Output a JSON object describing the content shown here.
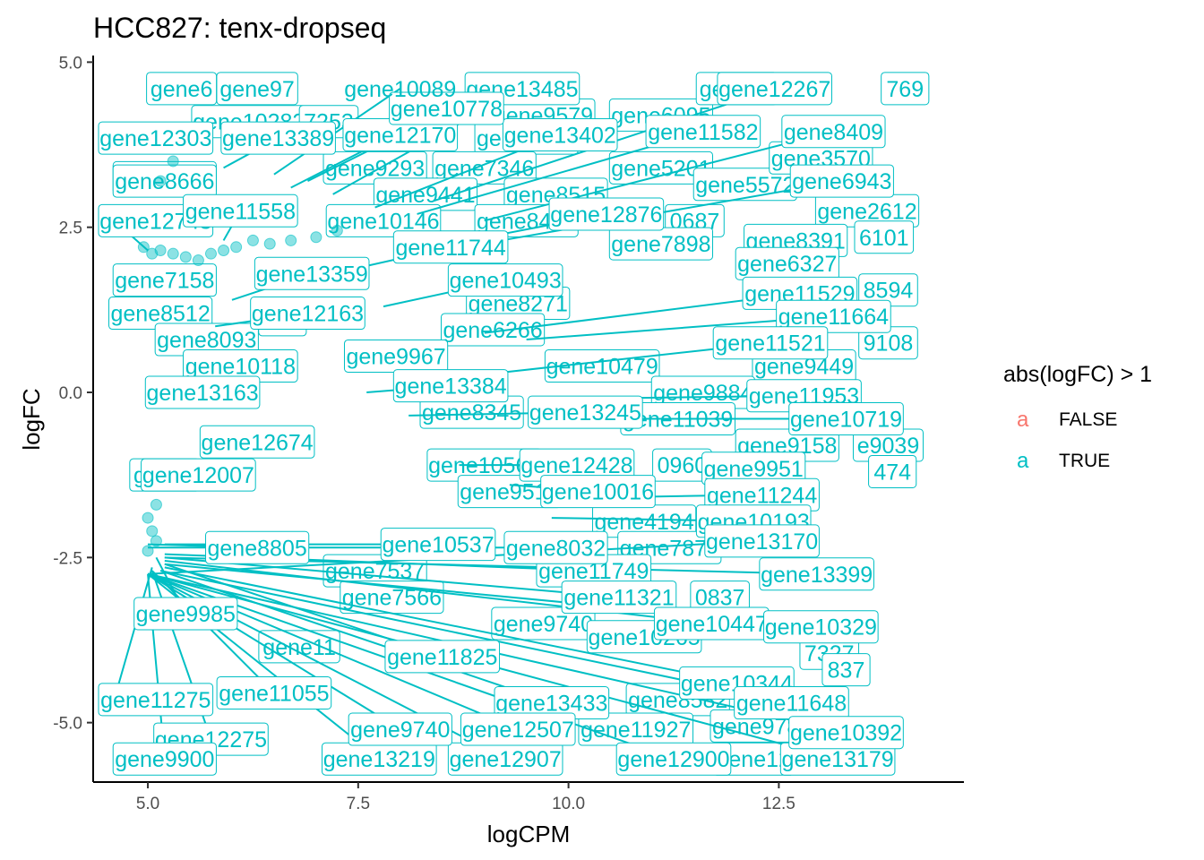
{
  "chart_data": {
    "type": "scatter",
    "title": "HCC827: tenx-dropseq",
    "xlabel": "logCPM",
    "ylabel": "logFC",
    "xlim": [
      4.35,
      14.7
    ],
    "ylim": [
      -5.9,
      5.1
    ],
    "x_ticks": [
      5.0,
      7.5,
      10.0,
      12.5
    ],
    "x_tick_labels": [
      "5.0",
      "7.5",
      "10.0",
      "12.5"
    ],
    "y_ticks": [
      5.0,
      2.5,
      0.0,
      -2.5,
      -5.0
    ],
    "y_tick_labels": [
      "5.0",
      "2.5",
      "0.0",
      "-2.5",
      "-5.0"
    ],
    "grid": false,
    "legend": {
      "title": "abs(logFC) > 1",
      "position": "right",
      "key_glyph": "a",
      "entries": [
        {
          "label": "FALSE",
          "color": "#f8766d"
        },
        {
          "label": "TRUE",
          "color": "#00bfc4"
        }
      ]
    },
    "colors": {
      "TRUE": "#00bfc4",
      "FALSE": "#f8766d"
    },
    "points": [
      {
        "x": 4.95,
        "y": 2.2
      },
      {
        "x": 5.05,
        "y": 2.1
      },
      {
        "x": 5.15,
        "y": 2.15
      },
      {
        "x": 5.3,
        "y": 2.1
      },
      {
        "x": 5.45,
        "y": 2.05
      },
      {
        "x": 5.6,
        "y": 2.0
      },
      {
        "x": 5.75,
        "y": 2.1
      },
      {
        "x": 5.9,
        "y": 2.15
      },
      {
        "x": 6.05,
        "y": 2.2
      },
      {
        "x": 6.25,
        "y": 2.3
      },
      {
        "x": 6.45,
        "y": 2.25
      },
      {
        "x": 6.7,
        "y": 2.3
      },
      {
        "x": 7.0,
        "y": 2.35
      },
      {
        "x": 7.25,
        "y": 2.45
      },
      {
        "x": 5.2,
        "y": 3.7
      },
      {
        "x": 5.3,
        "y": 3.5
      },
      {
        "x": 5.15,
        "y": 3.2
      },
      {
        "x": 5.1,
        "y": -1.7
      },
      {
        "x": 5.0,
        "y": -1.9
      },
      {
        "x": 5.05,
        "y": -2.1
      },
      {
        "x": 5.1,
        "y": -2.25
      },
      {
        "x": 5.0,
        "y": -2.4
      }
    ],
    "labels": [
      {
        "gene": "gene12303",
        "x": 5.15,
        "y": 3.9,
        "lx": 4.65,
        "ly": 3.85,
        "box": true
      },
      {
        "gene": "gene13389",
        "x": 5.9,
        "y": 3.4,
        "lx": 6.55,
        "ly": 3.85,
        "box": true
      },
      {
        "gene": "gene12170",
        "x": 6.9,
        "y": 3.2,
        "lx": 8.0,
        "ly": 3.9,
        "box": true
      },
      {
        "gene": "gene13402",
        "x": 7.7,
        "y": 2.8,
        "lx": 9.9,
        "ly": 3.9,
        "box": true
      },
      {
        "gene": "gene11582",
        "x": 8.2,
        "y": 2.7,
        "lx": 11.6,
        "ly": 3.95,
        "box": true
      },
      {
        "gene": "gene8409",
        "x": 9.0,
        "y": 2.6,
        "lx": 13.15,
        "ly": 3.95,
        "box": true
      },
      {
        "gene": "gene12267",
        "x": 8.4,
        "y": 2.9,
        "lx": 12.45,
        "ly": 4.6,
        "box": true
      },
      {
        "gene": "gene13485",
        "x": 7.2,
        "y": 3.0,
        "lx": 9.45,
        "ly": 4.6,
        "box": true
      },
      {
        "gene": "gene10778",
        "x": 6.7,
        "y": 3.1,
        "lx": 8.55,
        "ly": 4.3,
        "box": true
      },
      {
        "gene": "gene10089",
        "x": 6.5,
        "y": 3.3,
        "lx": 8.0,
        "ly": 4.6,
        "box": false
      },
      {
        "gene": "gene6943",
        "x": 9.2,
        "y": 2.3,
        "lx": 13.25,
        "ly": 3.2,
        "box": true
      },
      {
        "gene": "gene12743",
        "x": 5.0,
        "y": 2.15,
        "lx": 4.6,
        "ly": 2.6,
        "box": true
      },
      {
        "gene": "gene11558",
        "x": 5.9,
        "y": 2.3,
        "lx": 6.1,
        "ly": 2.75,
        "box": true
      },
      {
        "gene": "gene12876",
        "x": 8.0,
        "y": 2.1,
        "lx": 10.45,
        "ly": 2.7,
        "box": true
      },
      {
        "gene": "gene11744",
        "x": 7.2,
        "y": 1.8,
        "lx": 8.6,
        "ly": 2.2,
        "box": true
      },
      {
        "gene": "gene13359",
        "x": 6.0,
        "y": 1.4,
        "lx": 6.95,
        "ly": 1.8,
        "box": true
      },
      {
        "gene": "gene10493",
        "x": 7.8,
        "y": 1.3,
        "lx": 9.25,
        "ly": 1.7,
        "box": true
      },
      {
        "gene": "gene12163",
        "x": 5.8,
        "y": 1.0,
        "lx": 6.9,
        "ly": 1.2,
        "box": true
      },
      {
        "gene": "gene11529",
        "x": 9.0,
        "y": 0.9,
        "lx": 12.75,
        "ly": 1.5,
        "box": true
      },
      {
        "gene": "gene11664",
        "x": 9.5,
        "y": 0.8,
        "lx": 13.15,
        "ly": 1.15,
        "box": true
      },
      {
        "gene": "gene11521",
        "x": 9.2,
        "y": 0.3,
        "lx": 12.4,
        "ly": 0.75,
        "box": true
      },
      {
        "gene": "gene9967",
        "x": 7.4,
        "y": 0.6,
        "lx": 7.95,
        "ly": 0.55,
        "box": true
      },
      {
        "gene": "gene13384",
        "x": 7.6,
        "y": 0.0,
        "lx": 8.6,
        "ly": 0.1,
        "box": true
      },
      {
        "gene": "gene13163",
        "x": 5.4,
        "y": -0.2,
        "lx": 5.65,
        "ly": 0.0,
        "box": true
      },
      {
        "gene": "gene11953",
        "x": 9.8,
        "y": -0.1,
        "lx": 12.8,
        "ly": -0.05,
        "box": true
      },
      {
        "gene": "gene13245",
        "x": 8.1,
        "y": -0.35,
        "lx": 10.2,
        "ly": -0.3,
        "box": true
      },
      {
        "gene": "gene10719",
        "x": 10.5,
        "y": -0.4,
        "lx": 13.3,
        "ly": -0.4,
        "box": true
      },
      {
        "gene": "gene12674",
        "x": 5.8,
        "y": -0.8,
        "lx": 6.3,
        "ly": -0.75,
        "box": true
      },
      {
        "gene": "gene12007",
        "x": 5.3,
        "y": -1.1,
        "lx": 5.6,
        "ly": -1.25,
        "box": true
      },
      {
        "gene": "gene12428",
        "x": 8.7,
        "y": -1.1,
        "lx": 10.1,
        "ly": -1.1,
        "box": true
      },
      {
        "gene": "gene10016",
        "x": 9.3,
        "y": -1.4,
        "lx": 10.35,
        "ly": -1.5,
        "box": true
      },
      {
        "gene": "gene11244",
        "x": 10.0,
        "y": -1.6,
        "lx": 12.3,
        "ly": -1.55,
        "box": true
      },
      {
        "gene": "gene10193",
        "x": 9.8,
        "y": -1.9,
        "lx": 12.2,
        "ly": -1.95,
        "box": true
      },
      {
        "gene": "gene10537",
        "x": 5.2,
        "y": -2.3,
        "lx": 8.45,
        "ly": -2.3,
        "box": true
      },
      {
        "gene": "gene11749",
        "x": 5.2,
        "y": -2.45,
        "lx": 10.3,
        "ly": -2.7,
        "box": true
      },
      {
        "gene": "gene11321",
        "x": 5.2,
        "y": -2.5,
        "lx": 10.6,
        "ly": -3.1,
        "box": true
      },
      {
        "gene": "gene13399",
        "x": 5.2,
        "y": -2.5,
        "lx": 12.95,
        "ly": -2.75,
        "box": true
      },
      {
        "gene": "gene10447",
        "x": 5.2,
        "y": -2.55,
        "lx": 11.7,
        "ly": -3.5,
        "box": true
      },
      {
        "gene": "gene10329",
        "x": 5.2,
        "y": -2.6,
        "lx": 13.0,
        "ly": -3.55,
        "box": true
      },
      {
        "gene": "gene9985",
        "x": 5.1,
        "y": -2.5,
        "lx": 5.45,
        "ly": -3.35,
        "box": true
      },
      {
        "gene": "gene11825",
        "x": 5.2,
        "y": -2.6,
        "lx": 8.5,
        "ly": -4.0,
        "box": true
      },
      {
        "gene": "gene10344",
        "x": 5.2,
        "y": -2.65,
        "lx": 12.0,
        "ly": -4.4,
        "box": true
      },
      {
        "gene": "gene13433",
        "x": 5.15,
        "y": -2.7,
        "lx": 9.8,
        "ly": -4.7,
        "box": true
      },
      {
        "gene": "gene11648",
        "x": 5.15,
        "y": -2.7,
        "lx": 12.65,
        "ly": -4.7,
        "box": true
      },
      {
        "gene": "gene11275",
        "x": 5.05,
        "y": -2.65,
        "lx": 4.6,
        "ly": -4.65,
        "box": true
      },
      {
        "gene": "gene11055",
        "x": 5.05,
        "y": -2.7,
        "lx": 6.5,
        "ly": -4.55,
        "box": true
      },
      {
        "gene": "gene12275",
        "x": 5.05,
        "y": -2.7,
        "lx": 5.75,
        "ly": -5.25,
        "box": true
      },
      {
        "gene": "gene13219",
        "x": 5.0,
        "y": -2.75,
        "lx": 7.75,
        "ly": -5.55,
        "box": true
      },
      {
        "gene": "gene12907",
        "x": 5.0,
        "y": -2.75,
        "lx": 9.25,
        "ly": -5.55,
        "box": true
      },
      {
        "gene": "gene12900",
        "x": 5.0,
        "y": -2.75,
        "lx": 11.25,
        "ly": -5.55,
        "box": true
      },
      {
        "gene": "gene13179",
        "x": 5.0,
        "y": -2.75,
        "lx": 13.2,
        "ly": -5.55,
        "box": true
      },
      {
        "gene": "gene10392",
        "x": 5.0,
        "y": -2.75,
        "lx": 13.3,
        "ly": -5.15,
        "box": true
      },
      {
        "gene": "gene12507",
        "x": 5.0,
        "y": -2.75,
        "lx": 9.4,
        "ly": -5.1,
        "box": true
      },
      {
        "gene": "gene9740",
        "x": 5.0,
        "y": -2.75,
        "lx": 8.0,
        "ly": -5.1,
        "box": true
      },
      {
        "gene": "gene8805",
        "x": 5.0,
        "y": -2.3,
        "lx": 6.3,
        "ly": -2.35,
        "box": true
      },
      {
        "gene": "gene8032",
        "x": 5.0,
        "y": -2.35,
        "lx": 9.85,
        "ly": -2.35,
        "box": true
      },
      {
        "gene": "gene9900",
        "x": 5.0,
        "y": -2.75,
        "lx": 5.2,
        "ly": -5.55,
        "box": true
      },
      {
        "gene": "gene13170",
        "x": 5.0,
        "y": -2.75,
        "lx": 12.3,
        "ly": -2.25,
        "box": true
      }
    ],
    "background_labels": [
      {
        "gene": "gene97",
        "x": 6.3,
        "y": 4.6
      },
      {
        "gene": "gene6",
        "x": 5.4,
        "y": 4.6
      },
      {
        "gene": "gene9579",
        "x": 9.7,
        "y": 4.2
      },
      {
        "gene": "gene6095",
        "x": 11.1,
        "y": 4.2
      },
      {
        "gene": "gene10282",
        "x": 6.2,
        "y": 4.1
      },
      {
        "gene": "7253",
        "x": 7.15,
        "y": 4.1
      },
      {
        "gene": "gene1216",
        "x": 9.5,
        "y": 3.85
      },
      {
        "gene": "gene9293",
        "x": 7.7,
        "y": 3.4
      },
      {
        "gene": "gene7346",
        "x": 9.0,
        "y": 3.4
      },
      {
        "gene": "gene5201",
        "x": 11.1,
        "y": 3.4
      },
      {
        "gene": "gene8666",
        "x": 5.2,
        "y": 3.25
      },
      {
        "gene": "gene9441",
        "x": 8.3,
        "y": 3.0
      },
      {
        "gene": "gene8515",
        "x": 9.85,
        "y": 3.0
      },
      {
        "gene": "gene5572",
        "x": 12.1,
        "y": 3.15
      },
      {
        "gene": "gene10146",
        "x": 7.8,
        "y": 2.6
      },
      {
        "gene": "gene8417",
        "x": 9.5,
        "y": 2.6
      },
      {
        "gene": "0687",
        "x": 11.5,
        "y": 2.6
      },
      {
        "gene": "gene2612",
        "x": 13.55,
        "y": 2.75
      },
      {
        "gene": "gene7898",
        "x": 11.1,
        "y": 2.25
      },
      {
        "gene": "gene8391",
        "x": 12.7,
        "y": 2.3
      },
      {
        "gene": "6101",
        "x": 13.75,
        "y": 2.35
      },
      {
        "gene": "gene6327",
        "x": 12.6,
        "y": 1.95
      },
      {
        "gene": "gene7158",
        "x": 5.2,
        "y": 1.7
      },
      {
        "gene": "gene8271",
        "x": 9.4,
        "y": 1.35
      },
      {
        "gene": "gene8512",
        "x": 5.15,
        "y": 1.2
      },
      {
        "gene": "472",
        "x": 6.6,
        "y": 1.1
      },
      {
        "gene": "gene6266",
        "x": 9.1,
        "y": 0.95
      },
      {
        "gene": "8594",
        "x": 13.8,
        "y": 1.55
      },
      {
        "gene": "gene8093",
        "x": 5.7,
        "y": 0.8
      },
      {
        "gene": "gene10118",
        "x": 6.1,
        "y": 0.4
      },
      {
        "gene": "gene10479",
        "x": 10.4,
        "y": 0.4
      },
      {
        "gene": "gene9449",
        "x": 12.8,
        "y": 0.4
      },
      {
        "gene": "9108",
        "x": 13.8,
        "y": 0.75
      },
      {
        "gene": "gene9884",
        "x": 11.6,
        "y": 0.0
      },
      {
        "gene": "gene8345",
        "x": 8.85,
        "y": -0.3
      },
      {
        "gene": "gene11039",
        "x": 11.3,
        "y": -0.4
      },
      {
        "gene": "gene9158",
        "x": 12.6,
        "y": -0.8
      },
      {
        "gene": "e9039",
        "x": 13.8,
        "y": -0.8
      },
      {
        "gene": "0960",
        "x": 11.35,
        "y": -1.1
      },
      {
        "gene": "gene9951",
        "x": 12.2,
        "y": -1.15
      },
      {
        "gene": "474",
        "x": 13.85,
        "y": -1.2
      },
      {
        "gene": "gene10562",
        "x": 9.0,
        "y": -1.1
      },
      {
        "gene": "gene9519",
        "x": 9.3,
        "y": -1.5
      },
      {
        "gene": "gene4194",
        "x": 10.9,
        "y": -1.95
      },
      {
        "gene": "gene7875",
        "x": 11.2,
        "y": -2.35
      },
      {
        "gene": "gene7537",
        "x": 7.7,
        "y": -2.7
      },
      {
        "gene": "0837",
        "x": 11.8,
        "y": -3.1
      },
      {
        "gene": "gene7566",
        "x": 7.9,
        "y": -3.1
      },
      {
        "gene": "gene9740b",
        "x": 9.7,
        "y": -3.5
      },
      {
        "gene": "7327",
        "x": 13.1,
        "y": -3.95
      },
      {
        "gene": "gene10265",
        "x": 10.9,
        "y": -3.7
      },
      {
        "gene": "837",
        "x": 13.3,
        "y": -4.2
      },
      {
        "gene": "gene8582",
        "x": 11.3,
        "y": -4.65
      },
      {
        "gene": "gene11927",
        "x": 10.8,
        "y": -5.1
      },
      {
        "gene": "gene9789",
        "x": 12.3,
        "y": -5.05
      },
      {
        "gene": "gene12",
        "x": 12.2,
        "y": -5.55
      },
      {
        "gene": "gene11",
        "x": 6.8,
        "y": -3.85
      },
      {
        "gene": "gene8",
        "x": 5.2,
        "y": -1.25
      },
      {
        "gene": "gene8666b",
        "x": 5.2,
        "y": 3.2
      },
      {
        "gene": "gene3570",
        "x": 13.0,
        "y": 3.55
      },
      {
        "gene": "769",
        "x": 14.0,
        "y": 4.6
      },
      {
        "gene": "gene13",
        "x": 12.0,
        "y": 4.6
      }
    ]
  }
}
